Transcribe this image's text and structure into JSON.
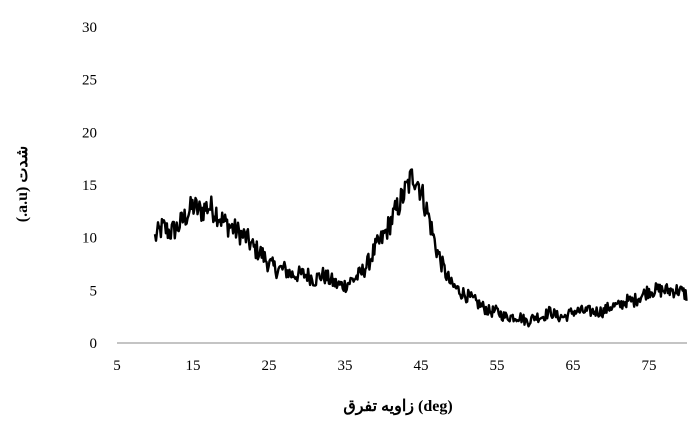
{
  "chart_data": {
    "type": "line",
    "title": "",
    "xlabel": "(deg) زاویه تفرق",
    "ylabel": "شدت (a.u.)",
    "xlim": [
      5,
      80
    ],
    "ylim": [
      0,
      30
    ],
    "xticks": [
      5,
      15,
      25,
      35,
      45,
      55,
      65,
      75
    ],
    "yticks": [
      0,
      5,
      10,
      15,
      20,
      25,
      30
    ],
    "grid": false,
    "legend": "none",
    "line_color": "#000000",
    "series": [
      {
        "x": [
          10,
          11,
          12,
          13,
          14,
          15,
          16,
          17,
          18,
          19,
          20,
          21,
          22,
          23,
          24,
          25,
          26,
          27,
          28,
          29,
          30,
          31,
          32,
          33,
          34,
          35,
          36,
          37,
          38,
          39,
          40,
          41,
          42,
          43,
          44,
          44.5,
          45,
          46,
          47,
          48,
          49,
          50,
          51,
          52,
          53,
          54,
          55,
          56,
          57,
          58,
          59,
          60,
          61,
          62,
          63,
          64,
          65,
          66,
          67,
          68,
          69,
          70,
          71,
          72,
          73,
          74,
          75,
          76,
          77,
          78,
          79,
          80
        ],
        "y": [
          10,
          11,
          10.5,
          11,
          12,
          13,
          12.5,
          13,
          12.5,
          11.5,
          11,
          10.5,
          10,
          9,
          8.5,
          7.5,
          7,
          7,
          6.5,
          6.5,
          6.5,
          6,
          6.5,
          6,
          5.5,
          5.5,
          6,
          6.5,
          7.5,
          9,
          10,
          11.5,
          13,
          14.5,
          16,
          15.5,
          14.5,
          12,
          9,
          7,
          5.5,
          5,
          4.5,
          4,
          3.5,
          3,
          3,
          2.5,
          2.5,
          2.5,
          2,
          2.5,
          2.5,
          3,
          2.5,
          2.5,
          3,
          3,
          3,
          3,
          3,
          3.5,
          3.5,
          4,
          4,
          4.5,
          5,
          5,
          5,
          5,
          5,
          4.5
        ]
      }
    ]
  }
}
